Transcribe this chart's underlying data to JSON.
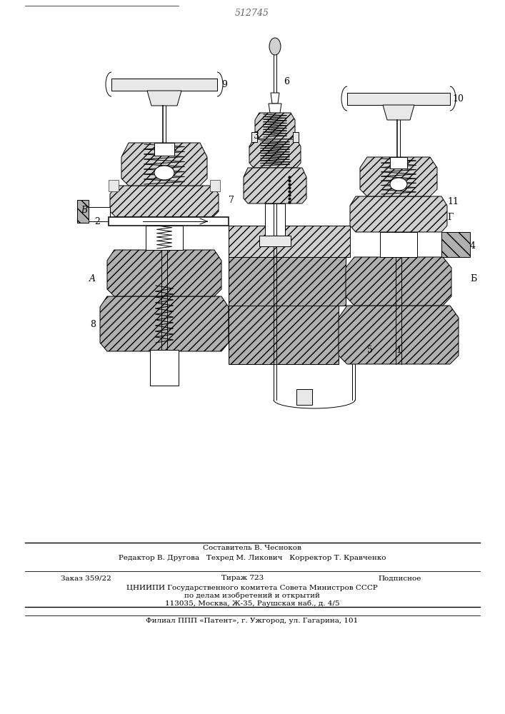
{
  "patent_number": "512745",
  "background_color": "#ffffff",
  "fig_width": 7.07,
  "fig_height": 10.0,
  "dpi": 100,
  "footer": {
    "line1_center": "Составитель В. Чесноков",
    "line2": "Редактор В. Другова   Техред М. Ликович   Корректор Т. Кравченко",
    "order": "Заказ 359/22",
    "tirazh": "Тираж 723",
    "podpisnoe": "Подписное",
    "line4": "ЦНИИПИ Государственного комитета Совета Министров СССР",
    "line5": "по делам изобретений и открытий",
    "line6": "113035, Москва, Ж-35, Раушская наб., д. 4/5",
    "line7": "Филиал ППП «Патент», г. Ужгород, ул. Гагарина, 101"
  }
}
